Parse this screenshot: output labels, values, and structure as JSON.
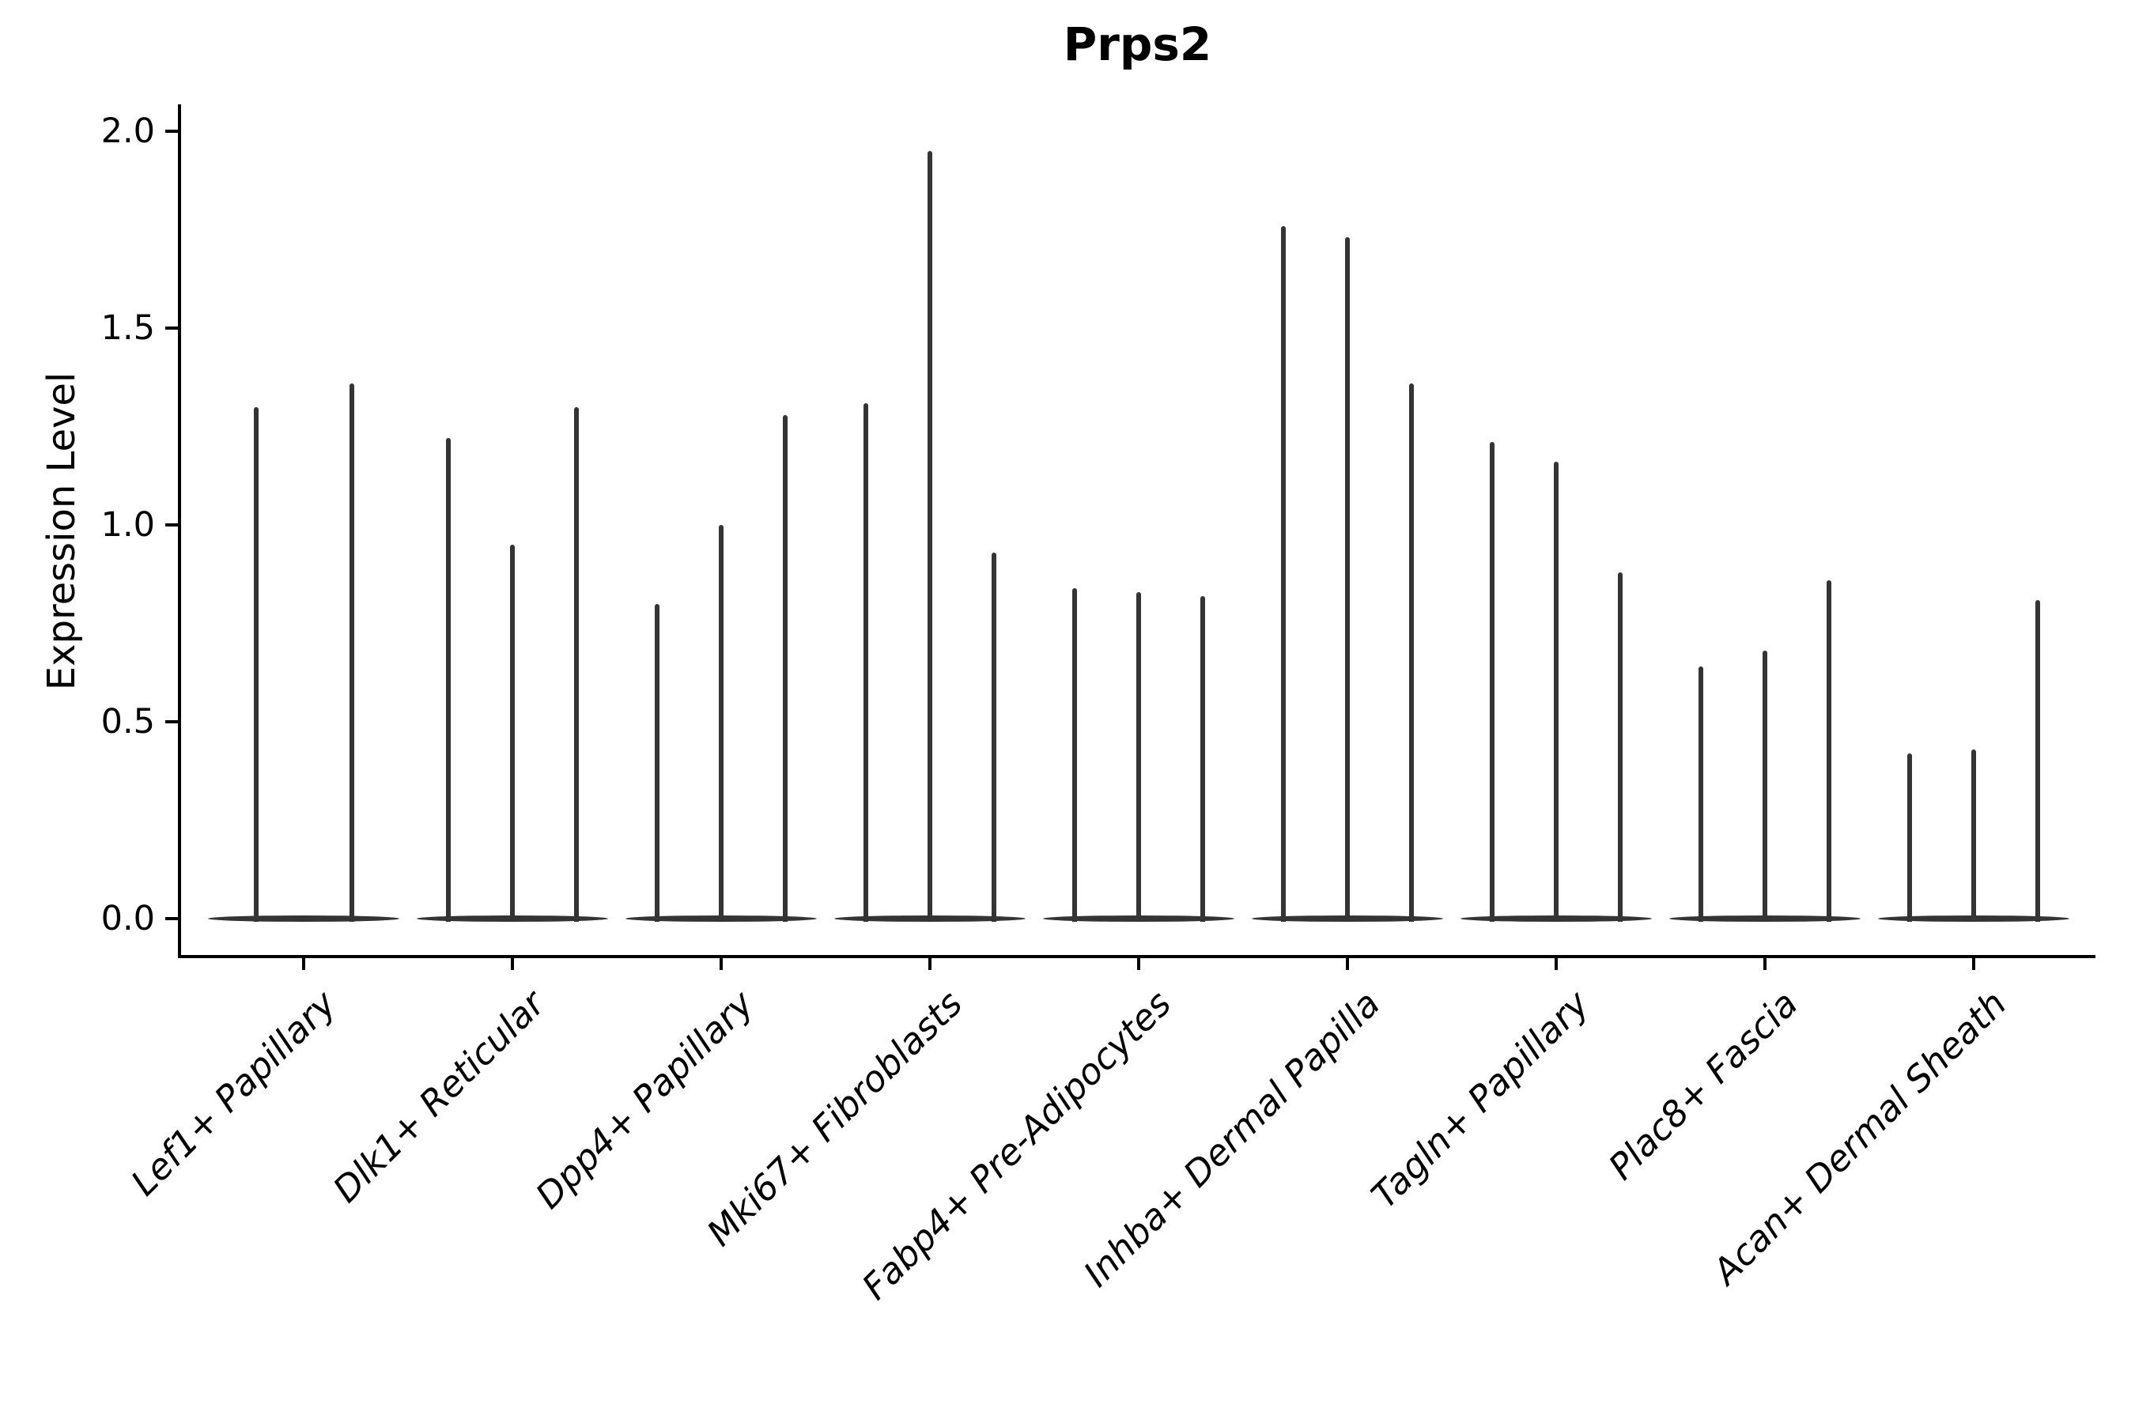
{
  "chart_data": {
    "type": "violin",
    "title": "Prps2",
    "ylabel": "Expression Level",
    "xlabel": "",
    "ytick_labels": [
      "0.0",
      "0.5",
      "1.0",
      "1.5",
      "2.0"
    ],
    "ytick_values": [
      0.0,
      0.5,
      1.0,
      1.5,
      2.0
    ],
    "ylim": [
      -0.1,
      2.07
    ],
    "grid": false,
    "legend_position": "none",
    "colors": {
      "violin": "#343434",
      "axis": "#000000",
      "text": "#000000"
    },
    "categories": [
      "Lef1+ Papillary",
      "Dlk1+ Reticular",
      "Dpp4+ Papillary",
      "Mki67+ Fibroblasts",
      "Fabp4+ Pre-Adipocytes",
      "Inhba+ Dermal Papilla",
      "Tagln+ Papillary",
      "Plac8+ Fascia",
      "Acan+ Dermal Sheath"
    ],
    "groups": [
      {
        "category": "Lef1+ Papillary",
        "violin_peaks": [
          1.3,
          1.36
        ]
      },
      {
        "category": "Dlk1+ Reticular",
        "violin_peaks": [
          1.22,
          0.95,
          1.3
        ]
      },
      {
        "category": "Dpp4+ Papillary",
        "violin_peaks": [
          0.8,
          1.0,
          1.28
        ]
      },
      {
        "category": "Mki67+ Fibroblasts",
        "violin_peaks": [
          1.31,
          1.95,
          0.93
        ]
      },
      {
        "category": "Fabp4+ Pre-Adipocytes",
        "violin_peaks": [
          0.84,
          0.83,
          0.82
        ]
      },
      {
        "category": "Inhba+ Dermal Papilla",
        "violin_peaks": [
          1.76,
          1.73,
          1.36
        ]
      },
      {
        "category": "Tagln+ Papillary",
        "violin_peaks": [
          1.21,
          1.16,
          0.88
        ]
      },
      {
        "category": "Plac8+ Fascia",
        "violin_peaks": [
          0.64,
          0.68,
          0.86
        ]
      },
      {
        "category": "Acan+ Dermal Sheath",
        "violin_peaks": [
          0.42,
          0.43,
          0.81
        ]
      }
    ],
    "baseline_value": 0.0
  }
}
